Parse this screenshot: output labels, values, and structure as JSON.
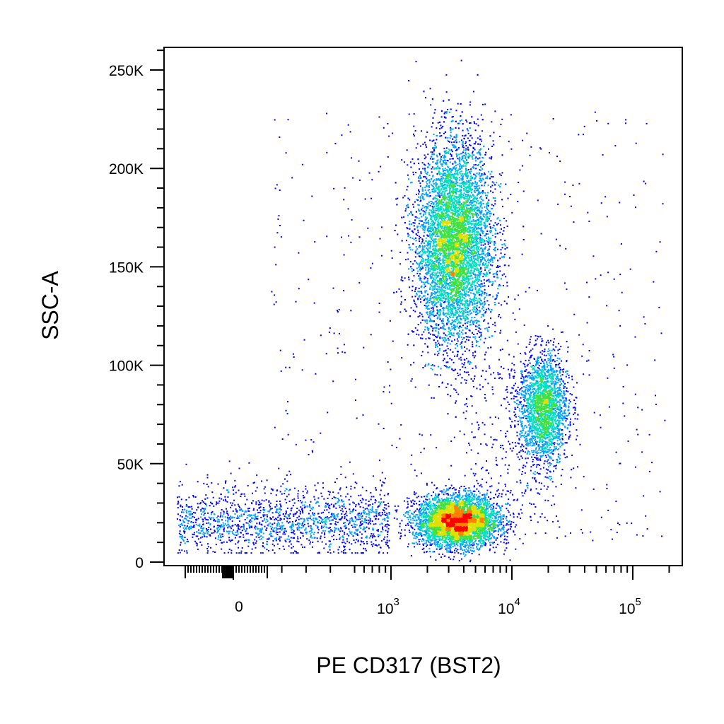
{
  "chart_data": {
    "type": "scatter",
    "xlabel": "PE CD317 (BST2)",
    "ylabel": "SSC-A",
    "x_scale": "biexponential",
    "ylim": [
      0,
      262144
    ],
    "y_ticks": [
      {
        "value": 0,
        "label": "0"
      },
      {
        "value": 50000,
        "label": "50K"
      },
      {
        "value": 100000,
        "label": "100K"
      },
      {
        "value": 150000,
        "label": "150K"
      },
      {
        "value": 200000,
        "label": "200K"
      },
      {
        "value": 250000,
        "label": "250K"
      }
    ],
    "x_ticks": [
      {
        "value": 0,
        "base": "0",
        "exp": ""
      },
      {
        "value": 1000,
        "base": "10",
        "exp": "3"
      },
      {
        "value": 10000,
        "base": "10",
        "exp": "4"
      },
      {
        "value": 100000,
        "base": "10",
        "exp": "5"
      }
    ],
    "color_scale": [
      "#0000ff",
      "#00a0ff",
      "#00e0c0",
      "#40e040",
      "#e0e000",
      "#ff8000",
      "#ff0000"
    ],
    "populations": [
      {
        "x_center": 3300,
        "y_center": 162000,
        "x_log_sd": 0.16,
        "y_sd": 26000,
        "weight": 0.48
      },
      {
        "x_center": 3500,
        "y_center": 21000,
        "x_log_sd": 0.17,
        "y_sd": 6500,
        "weight": 0.28
      },
      {
        "x_center": 18000,
        "y_center": 79000,
        "x_log_sd": 0.1,
        "y_sd": 14000,
        "weight": 0.14
      },
      {
        "x_center": 20,
        "y_center": 22000,
        "x_log_sd": 0.0,
        "y_sd": 9000,
        "weight": 0.1
      }
    ]
  }
}
